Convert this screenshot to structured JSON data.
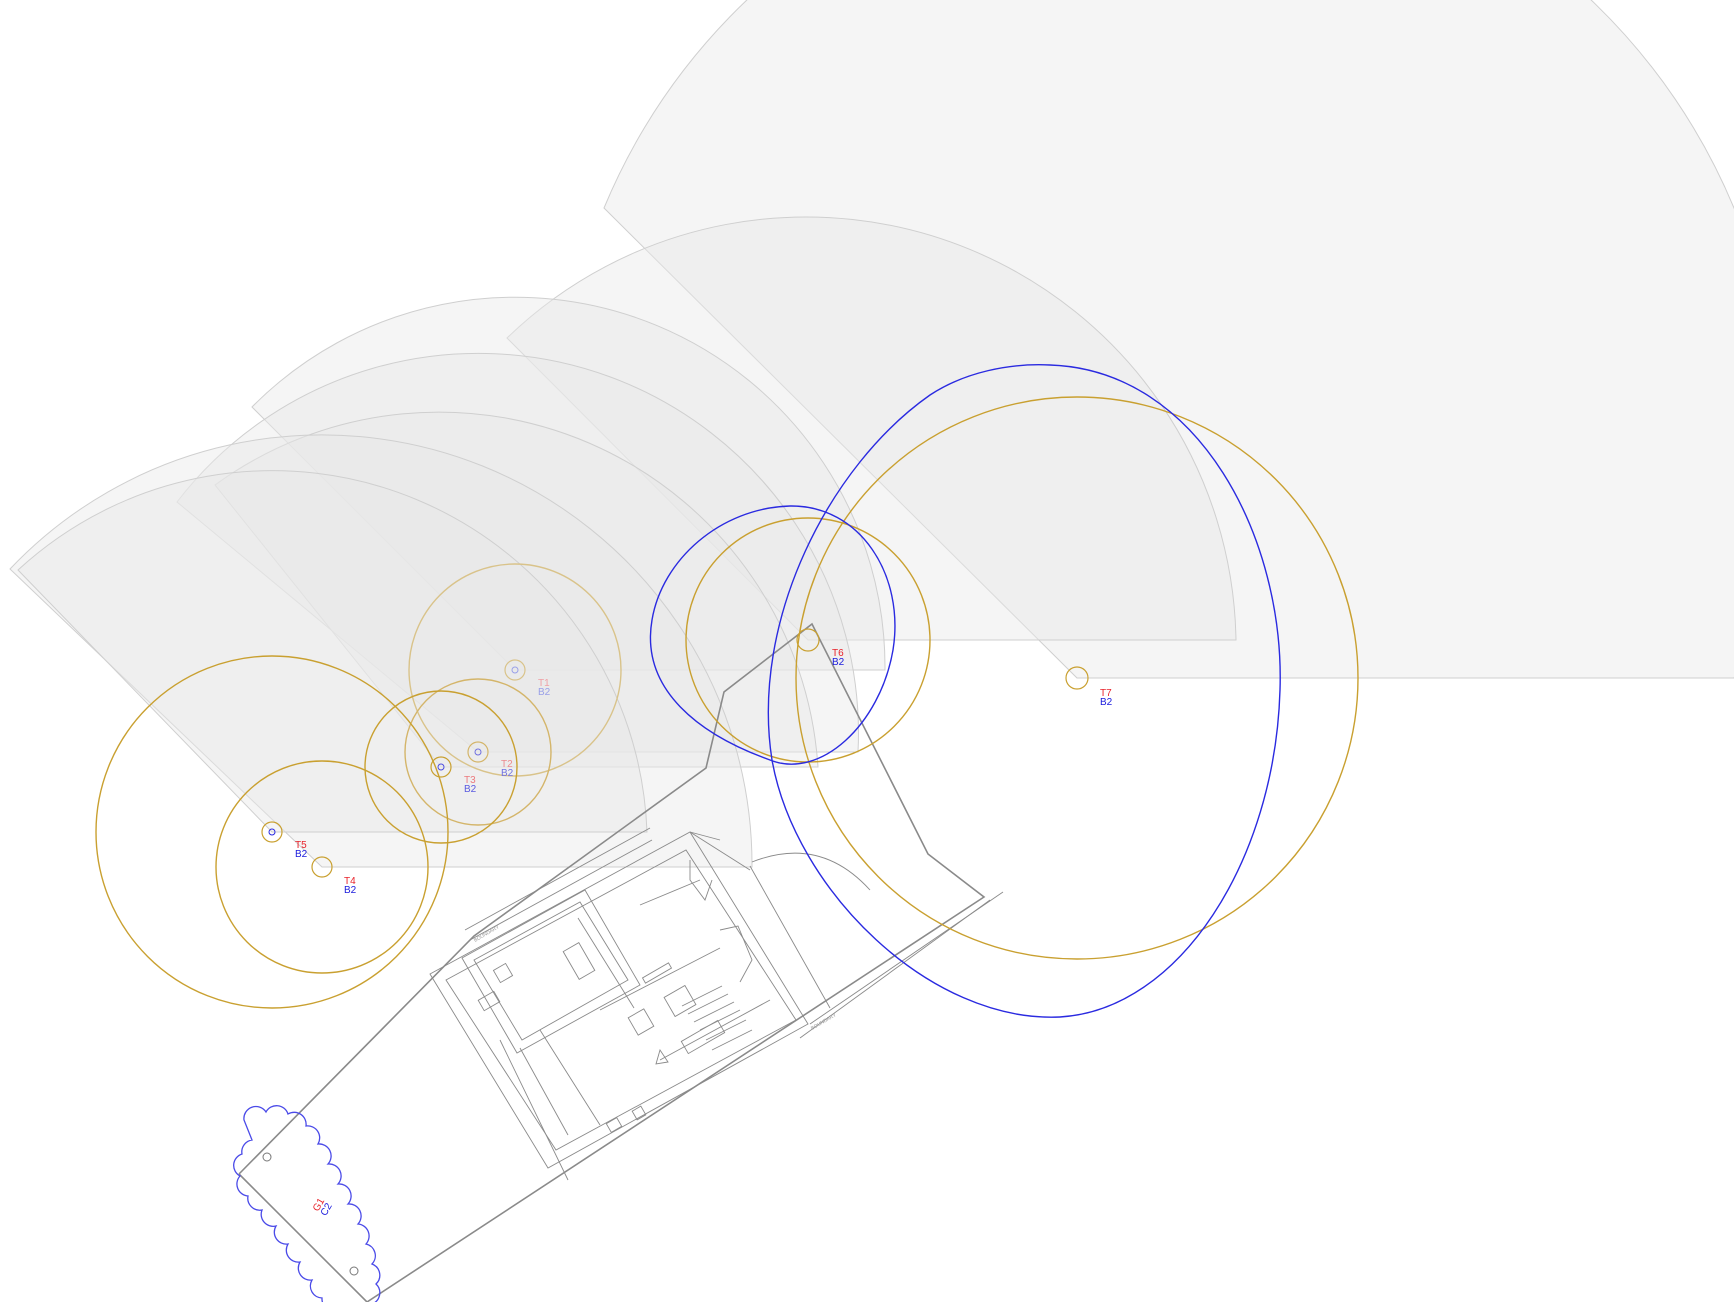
{
  "colors": {
    "tree_label": "#e8222a",
    "category_label": "#1a1adc",
    "rpa_circle": "#c9a030",
    "canopy_blue": "#2a2ae0",
    "crown_fill": "#e6e6e6",
    "plan_line": "#8a8a8a"
  },
  "trees": [
    {
      "id": "T1",
      "category": "B2",
      "faded": true
    },
    {
      "id": "T2",
      "category": "B2",
      "faded": true
    },
    {
      "id": "T3",
      "category": "B2",
      "faded": true
    },
    {
      "id": "T4",
      "category": "B2",
      "faded": false
    },
    {
      "id": "T5",
      "category": "B2",
      "faded": false
    },
    {
      "id": "T6",
      "category": "B2",
      "faded": false
    },
    {
      "id": "T7",
      "category": "B2",
      "faded": false
    }
  ],
  "group": {
    "id": "G1",
    "category": "C2"
  }
}
